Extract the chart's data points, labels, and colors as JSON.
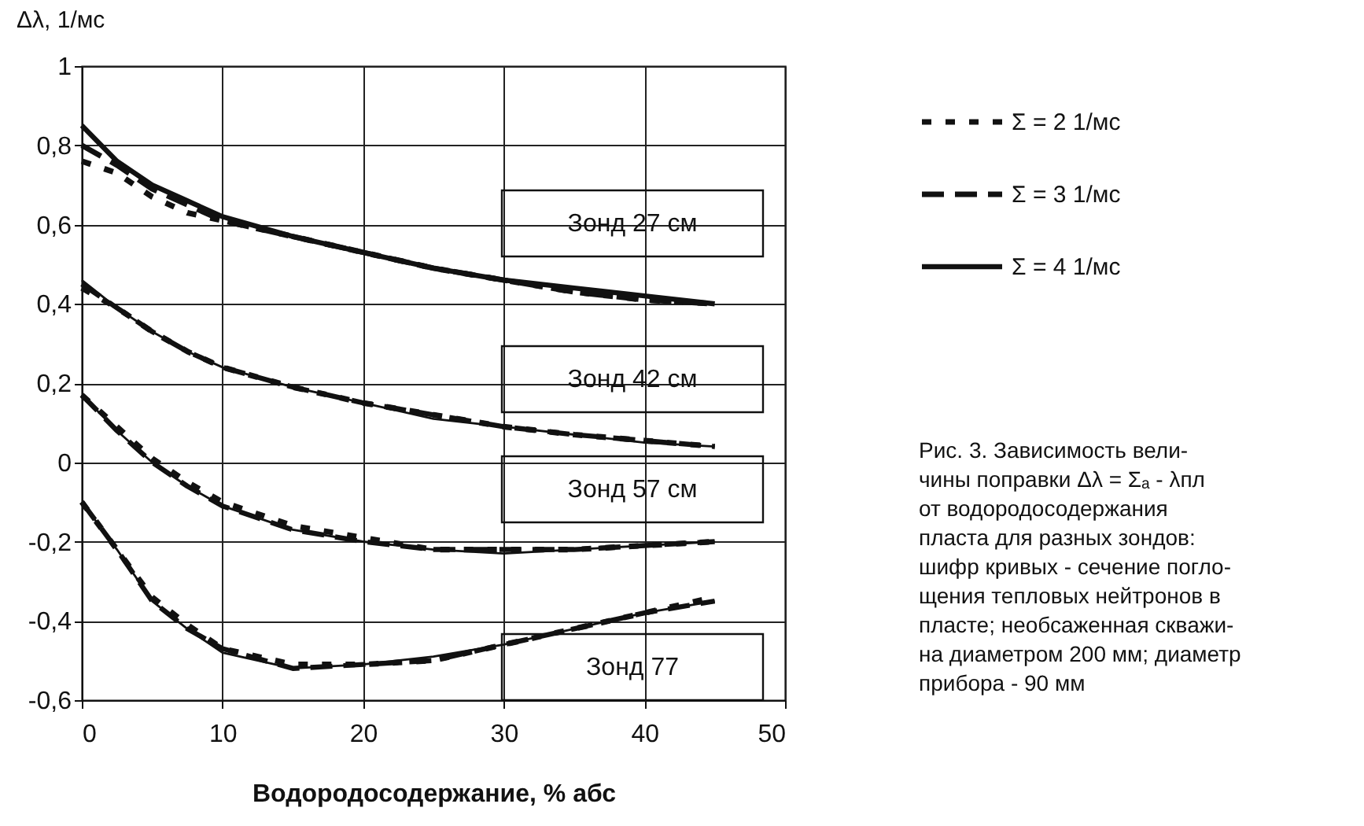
{
  "chart_data": {
    "type": "line",
    "xlabel": "Водородосодержание, % абс",
    "ylabel": "Δλ, 1/мс",
    "x": [
      0,
      2.5,
      5,
      7.5,
      10,
      15,
      20,
      25,
      30,
      35,
      40,
      45
    ],
    "xlim": [
      0,
      50
    ],
    "xticks": [
      0,
      10,
      20,
      30,
      40,
      50
    ],
    "ylim": [
      -0.6,
      1
    ],
    "yticks": [
      {
        "value": -0.6,
        "label": "-0,6"
      },
      {
        "value": -0.4,
        "label": "-0,4"
      },
      {
        "value": -0.2,
        "label": "-0,2"
      },
      0,
      {
        "value": 0.2,
        "label": "0,2"
      },
      {
        "value": 0.4,
        "label": "0,4"
      },
      {
        "value": 0.6,
        "label": "0,6"
      },
      {
        "value": 0.8,
        "label": "0,8"
      },
      1
    ],
    "grid": true,
    "legend": "top right",
    "marker": "none",
    "series": [
      {
        "name": "Σ = 2 1/мс",
        "color": "#111111",
        "line_style": "dotted",
        "values": [
          0.76,
          0.73,
          0.67,
          0.63,
          0.61,
          0.57,
          0.53,
          0.49,
          0.46,
          0.43,
          0.41,
          0.4
        ]
      },
      {
        "name": "Σ = 3 1/мс",
        "color": "#111111",
        "line_style": "dashed",
        "values": [
          0.8,
          0.75,
          0.69,
          0.65,
          0.61,
          0.57,
          0.53,
          0.49,
          0.46,
          0.43,
          0.41,
          0.4
        ]
      },
      {
        "name": "Σ = 4 1/мс",
        "color": "#111111",
        "line_style": "solid",
        "values": [
          0.85,
          0.76,
          0.7,
          0.66,
          0.62,
          0.57,
          0.53,
          0.49,
          0.46,
          0.44,
          0.42,
          0.4
        ]
      },
      {
        "color": "#111111",
        "line_style": "dotted",
        "values": [
          0.44,
          0.39,
          0.33,
          0.28,
          0.24,
          0.19,
          0.15,
          0.12,
          0.09,
          0.07,
          0.055,
          0.04
        ]
      },
      {
        "color": "#111111",
        "line_style": "dashed",
        "values": [
          0.45,
          0.39,
          0.33,
          0.28,
          0.24,
          0.19,
          0.15,
          0.12,
          0.09,
          0.07,
          0.055,
          0.04
        ]
      },
      {
        "color": "#111111",
        "line_style": "solid",
        "values": [
          0.46,
          0.39,
          0.33,
          0.28,
          0.24,
          0.19,
          0.15,
          0.11,
          0.09,
          0.07,
          0.05,
          0.04
        ]
      },
      {
        "color": "#111111",
        "line_style": "dotted",
        "values": [
          0.17,
          0.09,
          0.01,
          -0.05,
          -0.1,
          -0.16,
          -0.19,
          -0.22,
          -0.22,
          -0.22,
          -0.21,
          -0.2
        ]
      },
      {
        "color": "#111111",
        "line_style": "dashed",
        "values": [
          0.17,
          0.08,
          0.0,
          -0.06,
          -0.11,
          -0.17,
          -0.2,
          -0.22,
          -0.22,
          -0.22,
          -0.21,
          -0.2
        ]
      },
      {
        "color": "#111111",
        "line_style": "solid",
        "values": [
          0.17,
          0.08,
          0.0,
          -0.06,
          -0.11,
          -0.17,
          -0.2,
          -0.22,
          -0.23,
          -0.22,
          -0.21,
          -0.2
        ]
      },
      {
        "color": "#111111",
        "line_style": "dotted",
        "values": [
          -0.1,
          -0.22,
          -0.34,
          -0.41,
          -0.47,
          -0.51,
          -0.51,
          -0.5,
          -0.46,
          -0.42,
          -0.38,
          -0.34
        ]
      },
      {
        "color": "#111111",
        "line_style": "dashed",
        "values": [
          -0.1,
          -0.22,
          -0.35,
          -0.42,
          -0.47,
          -0.52,
          -0.51,
          -0.5,
          -0.46,
          -0.42,
          -0.38,
          -0.35
        ]
      },
      {
        "color": "#111111",
        "line_style": "solid",
        "values": [
          -0.1,
          -0.22,
          -0.35,
          -0.42,
          -0.48,
          -0.52,
          -0.51,
          -0.49,
          -0.46,
          -0.42,
          -0.38,
          -0.35
        ]
      }
    ],
    "annotations": [
      "Зонд 27 см",
      "Зонд 42 см",
      "Зонд 57 см",
      "Зонд 77",
      "Рис. 3. Зависимость вели-\nчины поправки Δλ = Σₐ - λпл\nот водородосодержания\nпласта для разных зондов:\nшифр кривых - сечение погло-\nщения тепловых нейтронов в\nпласте; необсаженная скважи-\nна диаметром 200 мм; диаметр\nприбора - 90 мм"
    ]
  }
}
